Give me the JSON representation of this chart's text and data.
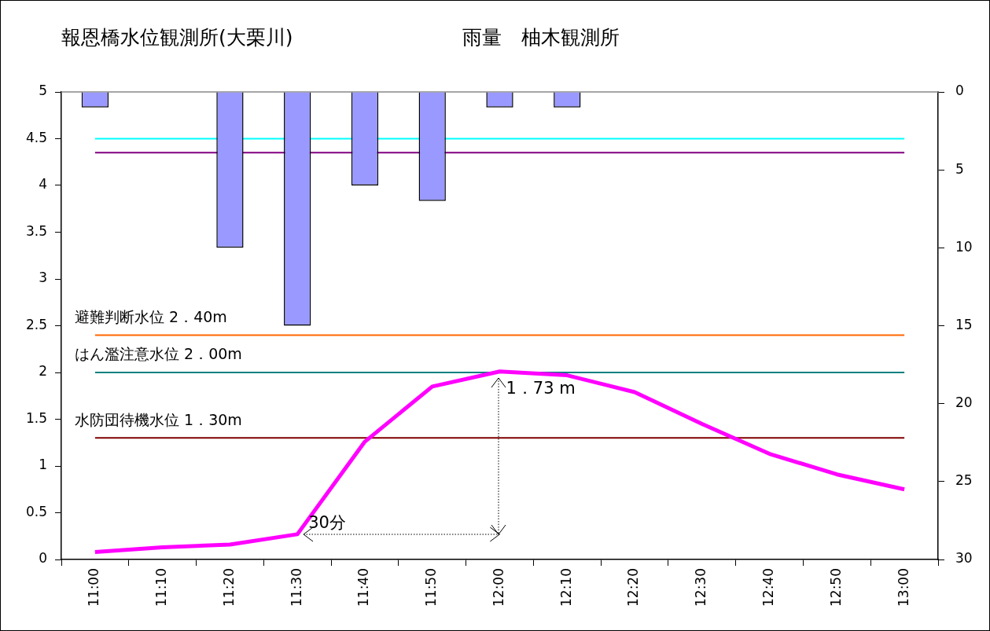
{
  "chart_data": {
    "type": "bar",
    "title": "報恩橋水位観測所(大栗川)",
    "subtitle": "雨量　柚木観測所",
    "categories": [
      "11:00",
      "11:10",
      "11:20",
      "11:30",
      "11:40",
      "11:50",
      "12:00",
      "12:10",
      "12:20",
      "12:30",
      "12:40",
      "12:50",
      "13:00"
    ],
    "series": [
      {
        "axis": "y2",
        "color": "#9999ff",
        "values": [
          1,
          null,
          10,
          15,
          6,
          7,
          1,
          1,
          null,
          null,
          null,
          null,
          null
        ]
      },
      {
        "type": "line",
        "color": "#ff00ff",
        "values": [
          0.08,
          0.13,
          0.16,
          0.27,
          1.26,
          1.85,
          2.01,
          1.97,
          1.79,
          1.45,
          1.13,
          0.91,
          0.75
        ]
      }
    ],
    "ylim": [
      0,
      5
    ],
    "yticks": [
      0,
      0.5,
      1,
      1.5,
      2,
      2.5,
      3,
      3.5,
      4,
      4.5,
      5
    ],
    "y2lim": [
      30,
      0
    ],
    "y2ticks": [
      0,
      5,
      10,
      15,
      20,
      25,
      30
    ],
    "ref_lines": [
      {
        "axis": "y",
        "value": 4.5,
        "color": "#00ffff"
      },
      {
        "axis": "y",
        "value": 4.35,
        "color": "#800080"
      },
      {
        "axis": "y",
        "value": 2.4,
        "label": "避難判断水位 2．40m",
        "color": "#ff6600"
      },
      {
        "axis": "y",
        "value": 2.0,
        "label": "はん濫注意水位 2．00m",
        "color": "#008080"
      },
      {
        "axis": "y",
        "value": 1.3,
        "label": "水防団待機水位 1．30m",
        "color": "#800000"
      }
    ],
    "annotations": [
      {
        "text": "30分",
        "x": "11:30",
        "y": 0.27
      },
      {
        "text": "1．73 m",
        "x": "12:00",
        "y": 2.01
      }
    ],
    "grid": false,
    "legend": false
  }
}
